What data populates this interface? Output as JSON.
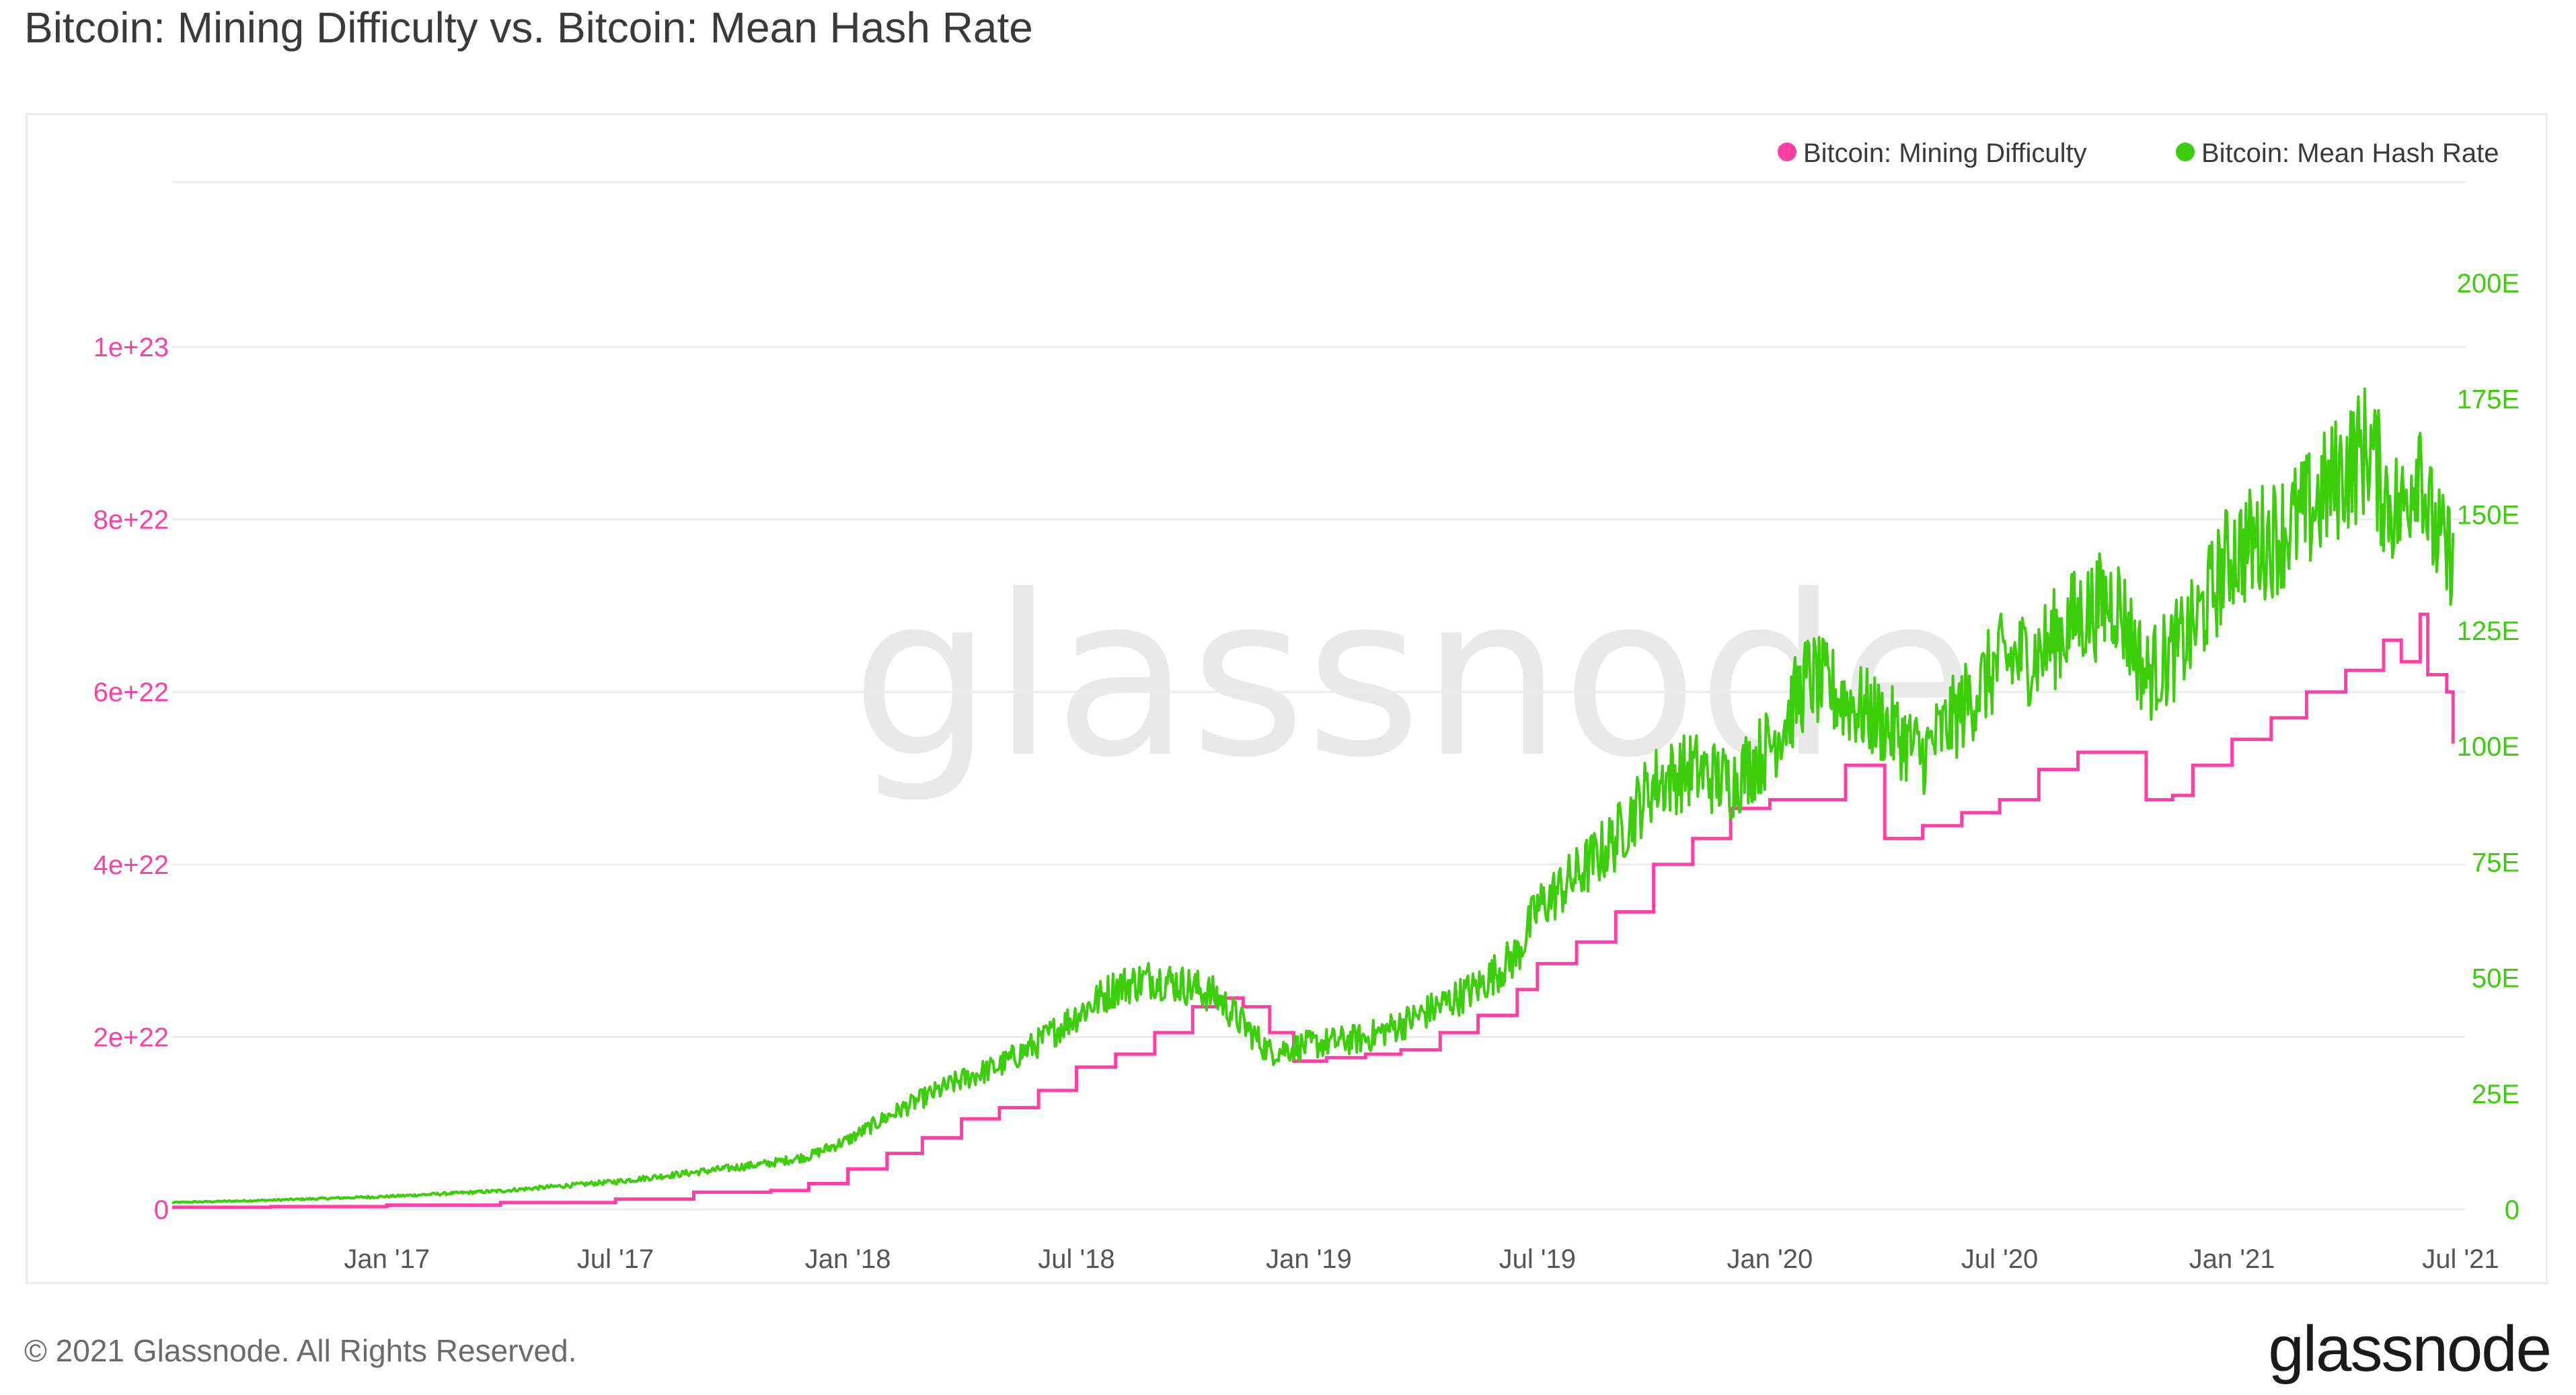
{
  "header": {
    "title": "Bitcoin: Mining Difficulty vs. Bitcoin: Mean Hash Rate"
  },
  "footer": {
    "copyright": "© 2021 Glassnode. All Rights Reserved.",
    "brand": "glassnode"
  },
  "watermark": "glassnode",
  "colors": {
    "difficulty": "#ff3fa4",
    "hashrate": "#3ccd0b",
    "grid": "#ececec",
    "axis_text": "#555555"
  },
  "chart_data": {
    "type": "line",
    "title": "Bitcoin: Mining Difficulty vs. Bitcoin: Mean Hash Rate",
    "x_axis": {
      "type": "date",
      "range": [
        "2016-07-15",
        "2021-07-05"
      ],
      "tick_labels": [
        "Jan '17",
        "Jul '17",
        "Jan '18",
        "Jul '18",
        "Jan '19",
        "Jul '19",
        "Jan '20",
        "Jul '20",
        "Jan '21",
        "Jul '21"
      ],
      "tick_dates": [
        "2017-01-01",
        "2017-07-01",
        "2018-01-01",
        "2018-07-01",
        "2019-01-01",
        "2019-07-01",
        "2020-01-01",
        "2020-07-01",
        "2021-01-01",
        "2021-07-01"
      ]
    },
    "y_axis_left": {
      "range": [
        0,
        1e+23
      ],
      "tick_values": [
        0,
        2e+22,
        4e+22,
        6e+22,
        8e+22,
        1e+23
      ],
      "tick_labels": [
        "0",
        "2e+22",
        "4e+22",
        "6e+22",
        "8e+22",
        "1e+23"
      ]
    },
    "y_axis_right": {
      "range": [
        0,
        200
      ],
      "tick_values": [
        0,
        25,
        50,
        75,
        100,
        125,
        150,
        175,
        200
      ],
      "tick_labels": [
        "0",
        "25E",
        "50E",
        "75E",
        "100E",
        "125E",
        "150E",
        "175E",
        "200E"
      ]
    },
    "legend": {
      "position": "top-right"
    },
    "grid": {
      "horizontal": true,
      "vertical": false
    },
    "series": [
      {
        "name": "Bitcoin: Mining Difficulty",
        "axis": "left",
        "style": "step",
        "x": [
          "2016-07-15",
          "2016-10-01",
          "2017-01-01",
          "2017-04-01",
          "2017-07-01",
          "2017-09-01",
          "2017-11-01",
          "2017-12-01",
          "2018-01-01",
          "2018-02-01",
          "2018-03-01",
          "2018-04-01",
          "2018-05-01",
          "2018-06-01",
          "2018-07-01",
          "2018-08-01",
          "2018-09-01",
          "2018-10-01",
          "2018-10-20",
          "2018-11-10",
          "2018-12-01",
          "2018-12-20",
          "2019-01-15",
          "2019-02-15",
          "2019-03-15",
          "2019-04-15",
          "2019-05-15",
          "2019-06-15",
          "2019-07-01",
          "2019-08-01",
          "2019-09-01",
          "2019-10-01",
          "2019-11-01",
          "2019-12-01",
          "2020-01-01",
          "2020-02-01",
          "2020-03-01",
          "2020-04-01",
          "2020-05-01",
          "2020-06-01",
          "2020-07-01",
          "2020-08-01",
          "2020-09-01",
          "2020-10-01",
          "2020-10-25",
          "2020-11-15",
          "2020-12-01",
          "2021-01-01",
          "2021-02-01",
          "2021-03-01",
          "2021-04-01",
          "2021-04-20",
          "2021-05-01",
          "2021-05-15",
          "2021-05-30",
          "2021-06-05",
          "2021-06-20",
          "2021-06-25"
        ],
        "values": [
          2.5e+20,
          3.3e+20,
          5e+20,
          8e+20,
          1.2e+21,
          2e+21,
          2.2e+21,
          3e+21,
          4.7e+21,
          6.5e+21,
          8.3e+21,
          1.05e+22,
          1.18e+22,
          1.38e+22,
          1.65e+22,
          1.8e+22,
          2.05e+22,
          2.35e+22,
          2.45e+22,
          2.35e+22,
          2.05e+22,
          1.72e+22,
          1.76e+22,
          1.8e+22,
          1.85e+22,
          2.05e+22,
          2.25e+22,
          2.55e+22,
          2.85e+22,
          3.1e+22,
          3.45e+22,
          4e+22,
          4.3e+22,
          4.65e+22,
          4.75e+22,
          4.75e+22,
          5.15e+22,
          4.3e+22,
          4.45e+22,
          4.6e+22,
          4.75e+22,
          5.1e+22,
          5.3e+22,
          5.3e+22,
          4.75e+22,
          4.8e+22,
          5.15e+22,
          5.45e+22,
          5.7e+22,
          6e+22,
          6.25e+22,
          6.25e+22,
          6.6e+22,
          6.35e+22,
          6.9e+22,
          6.2e+22,
          6e+22,
          5.4e+22
        ]
      },
      {
        "name": "Bitcoin: Mean Hash Rate",
        "axis": "right",
        "style": "line",
        "x": [
          "2016-07-15",
          "2016-10-01",
          "2017-01-01",
          "2017-04-01",
          "2017-07-01",
          "2017-09-01",
          "2017-11-01",
          "2017-12-01",
          "2018-01-01",
          "2018-02-01",
          "2018-03-01",
          "2018-04-01",
          "2018-05-01",
          "2018-06-01",
          "2018-07-01",
          "2018-08-01",
          "2018-09-01",
          "2018-10-01",
          "2018-10-20",
          "2018-11-10",
          "2018-12-01",
          "2018-12-20",
          "2019-01-15",
          "2019-02-15",
          "2019-03-15",
          "2019-04-15",
          "2019-05-15",
          "2019-06-15",
          "2019-07-01",
          "2019-08-01",
          "2019-09-01",
          "2019-10-01",
          "2019-11-01",
          "2019-12-01",
          "2020-01-01",
          "2020-02-01",
          "2020-03-01",
          "2020-04-01",
          "2020-05-01",
          "2020-06-01",
          "2020-07-01",
          "2020-08-01",
          "2020-09-01",
          "2020-10-01",
          "2020-10-25",
          "2020-11-15",
          "2020-12-01",
          "2021-01-01",
          "2021-02-01",
          "2021-03-01",
          "2021-04-01",
          "2021-04-20",
          "2021-05-01",
          "2021-05-15",
          "2021-05-30",
          "2021-06-05",
          "2021-06-20",
          "2021-06-25"
        ],
        "values": [
          1.5,
          2.0,
          2.8,
          4.0,
          6.0,
          8.0,
          10.0,
          11.5,
          15.0,
          20.0,
          24.0,
          28.0,
          31.0,
          36.0,
          42.0,
          48.0,
          50.0,
          48.0,
          46.0,
          40.0,
          34.0,
          35.0,
          36.0,
          37.0,
          40.0,
          44.0,
          48.0,
          55.0,
          65.0,
          72.0,
          80.0,
          92.0,
          95.0,
          92.0,
          100.0,
          115.0,
          110.0,
          105.0,
          98.0,
          108.0,
          118.0,
          120.0,
          128.0,
          132.0,
          115.0,
          120.0,
          125.0,
          142.0,
          145.0,
          150.0,
          160.0,
          165.0,
          155.0,
          150.0,
          165.0,
          150.0,
          140.0,
          145.0
        ]
      }
    ]
  }
}
